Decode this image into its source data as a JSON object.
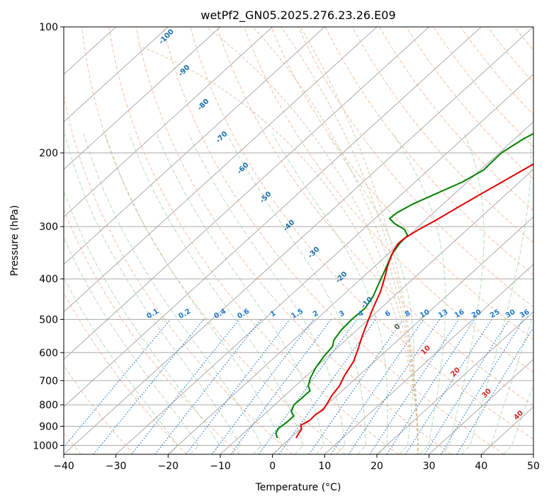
{
  "chart_data": {
    "type": "skew-t",
    "title": "wetPf2_GN05.2025.276.23.26.E09",
    "xlabel": "Temperature (°C)",
    "ylabel": "Pressure (hPa)",
    "xlim": [
      -40,
      50
    ],
    "ylim": [
      1050,
      100
    ],
    "x_ticks": [
      -40,
      -30,
      -20,
      -10,
      0,
      10,
      20,
      30,
      40,
      50
    ],
    "y_ticks": [
      100,
      200,
      300,
      400,
      500,
      600,
      700,
      800,
      900,
      1000
    ],
    "x_tick_labels": [
      "−40",
      "−30",
      "−20",
      "−10",
      "0",
      "10",
      "20",
      "30",
      "40",
      "50"
    ],
    "y_tick_labels": [
      "100",
      "200",
      "300",
      "400",
      "500",
      "600",
      "700",
      "800",
      "900",
      "1000"
    ],
    "colors": {
      "temperature": "#e00000",
      "dewpoint": "#008000",
      "isotherm": "#aaaaaa",
      "dry_adiabat": "#f4a582",
      "moist_adiabat": "#86c486",
      "mixing_ratio": "#1f78d0",
      "height_label": "#1a6fa8",
      "temp_label": "#d62728",
      "zero_label": "#555555",
      "tan": "#d2b48c"
    },
    "temperature_profile": [
      {
        "p": 960,
        "t": 1.1
      },
      {
        "p": 935,
        "t": 0.6
      },
      {
        "p": 915,
        "t": 0.3
      },
      {
        "p": 895,
        "t": -0.7
      },
      {
        "p": 870,
        "t": 0.0
      },
      {
        "p": 845,
        "t": -0.1
      },
      {
        "p": 820,
        "t": 0.3
      },
      {
        "p": 790,
        "t": -0.3
      },
      {
        "p": 760,
        "t": -1.0
      },
      {
        "p": 720,
        "t": -1.6
      },
      {
        "p": 680,
        "t": -2.8
      },
      {
        "p": 630,
        "t": -4.0
      },
      {
        "p": 590,
        "t": -5.7
      },
      {
        "p": 550,
        "t": -7.6
      },
      {
        "p": 510,
        "t": -9.5
      },
      {
        "p": 470,
        "t": -11.5
      },
      {
        "p": 430,
        "t": -13.5
      },
      {
        "p": 400,
        "t": -15.5
      },
      {
        "p": 370,
        "t": -17.8
      },
      {
        "p": 345,
        "t": -19.5
      },
      {
        "p": 330,
        "t": -20.3
      },
      {
        "p": 320,
        "t": -20.2
      },
      {
        "p": 305,
        "t": -19.3
      },
      {
        "p": 290,
        "t": -18.0
      },
      {
        "p": 270,
        "t": -16.5
      },
      {
        "p": 250,
        "t": -14.8
      },
      {
        "p": 230,
        "t": -12.9
      },
      {
        "p": 210,
        "t": -10.8
      },
      {
        "p": 190,
        "t": -8.0
      },
      {
        "p": 170,
        "t": -4.5
      },
      {
        "p": 160,
        "t": -2.6
      },
      {
        "p": 145,
        "t": 1.0
      },
      {
        "p": 130,
        "t": 5.2
      },
      {
        "p": 115,
        "t": 10.0
      },
      {
        "p": 100,
        "t": 14.9
      }
    ],
    "dewpoint_profile": [
      {
        "p": 960,
        "t": -2.5
      },
      {
        "p": 935,
        "t": -3.8
      },
      {
        "p": 910,
        "t": -4.3
      },
      {
        "p": 880,
        "t": -4.0
      },
      {
        "p": 850,
        "t": -4.0
      },
      {
        "p": 830,
        "t": -5.4
      },
      {
        "p": 800,
        "t": -6.3
      },
      {
        "p": 770,
        "t": -6.2
      },
      {
        "p": 740,
        "t": -6.2
      },
      {
        "p": 720,
        "t": -7.6
      },
      {
        "p": 690,
        "t": -8.8
      },
      {
        "p": 650,
        "t": -10.0
      },
      {
        "p": 610,
        "t": -10.8
      },
      {
        "p": 580,
        "t": -11.2
      },
      {
        "p": 560,
        "t": -12.3
      },
      {
        "p": 530,
        "t": -13.0
      },
      {
        "p": 500,
        "t": -13.2
      },
      {
        "p": 470,
        "t": -13.0
      },
      {
        "p": 440,
        "t": -14.0
      },
      {
        "p": 410,
        "t": -15.6
      },
      {
        "p": 380,
        "t": -17.3
      },
      {
        "p": 350,
        "t": -19.2
      },
      {
        "p": 330,
        "t": -20.0
      },
      {
        "p": 315,
        "t": -20.2
      },
      {
        "p": 305,
        "t": -22.0
      },
      {
        "p": 295,
        "t": -25.2
      },
      {
        "p": 287,
        "t": -27.2
      },
      {
        "p": 278,
        "t": -27.0
      },
      {
        "p": 265,
        "t": -25.8
      },
      {
        "p": 250,
        "t": -23.5
      },
      {
        "p": 235,
        "t": -21.0
      },
      {
        "p": 220,
        "t": -19.4
      },
      {
        "p": 200,
        "t": -19.6
      },
      {
        "p": 185,
        "t": -18.3
      },
      {
        "p": 165,
        "t": -15.1
      },
      {
        "p": 150,
        "t": -12.3
      },
      {
        "p": 135,
        "t": -10.2
      },
      {
        "p": 125,
        "t": -9.2
      },
      {
        "p": 115,
        "t": -8.5
      },
      {
        "p": 100,
        "t": -5.8
      }
    ],
    "height_labels": [
      "-100",
      "-90",
      "-80",
      "-70",
      "-60",
      "-50",
      "-40",
      "-30",
      "-20",
      "-10"
    ],
    "mixing_ratio_labels": [
      "0.1",
      "0.2",
      "0.4",
      "0.6",
      "1",
      "1.5",
      "2",
      "3",
      "4",
      "6",
      "8",
      "10",
      "13",
      "16",
      "20",
      "25",
      "30",
      "36"
    ],
    "moist_adiabat_labels": [
      "0",
      "10",
      "20",
      "30",
      "40"
    ]
  }
}
